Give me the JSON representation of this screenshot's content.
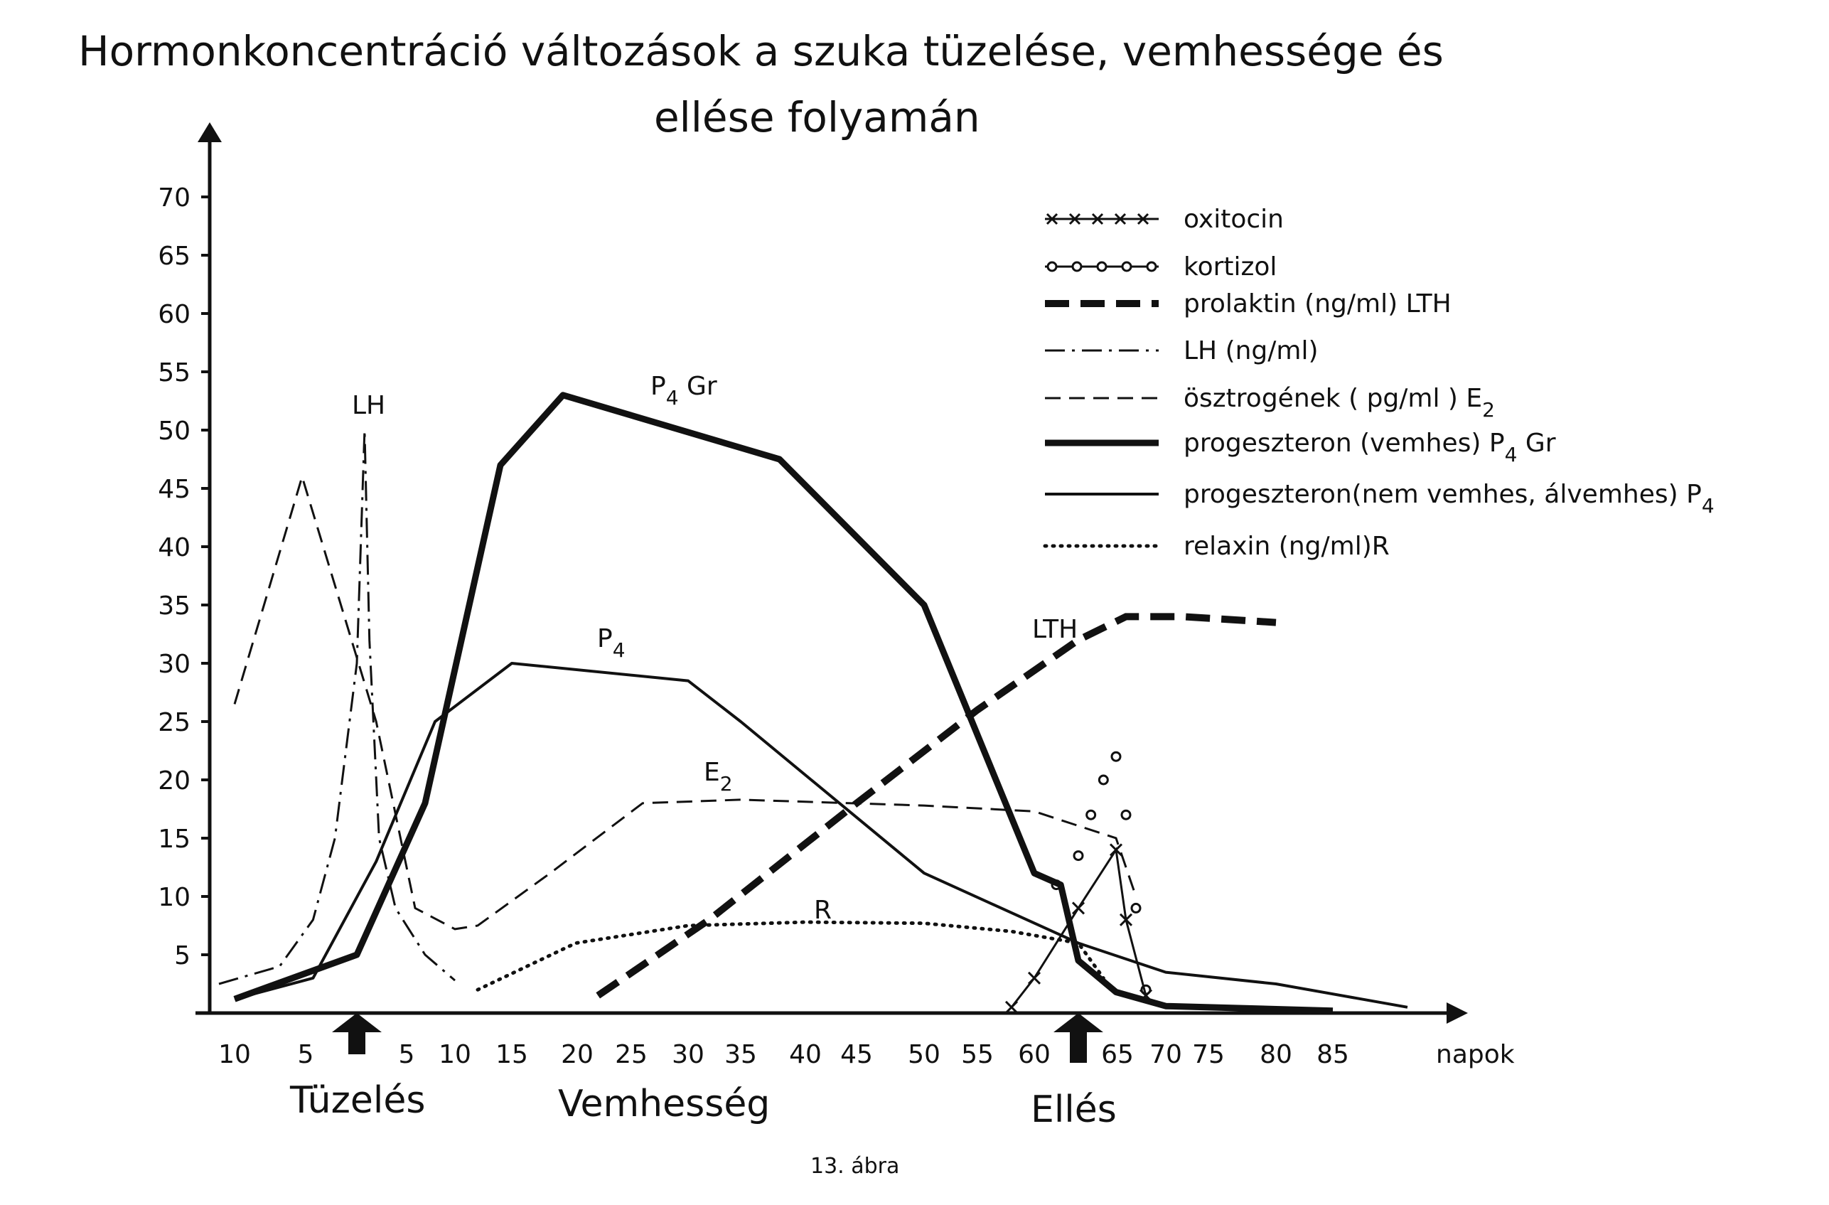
{
  "chart_data": {
    "type": "line",
    "title_line1": "Hormonkoncentráció  változások a  szuka  tüzelése,  vemhessége  és",
    "title_line2": "ellése  folyamán",
    "x_unit": "napok",
    "caption": "13. ábra",
    "y_ticks": [
      5,
      10,
      15,
      20,
      25,
      30,
      35,
      40,
      45,
      50,
      55,
      60,
      65,
      70
    ],
    "x_ticks": [
      "10",
      "5",
      "5",
      "10",
      "15",
      "20",
      "25",
      "30",
      "35",
      "40",
      "45",
      "50",
      "55",
      "60",
      "65",
      "70",
      "75",
      "80",
      "85"
    ],
    "phases": [
      "Tüzelés",
      "Vemhesség",
      "Ellés"
    ],
    "legend": [
      {
        "key": "oxitocin",
        "label": "oxitocin"
      },
      {
        "key": "kortizol",
        "label": "kortizol"
      },
      {
        "key": "prolaktin",
        "label": "prolaktin (ng/ml) LTH"
      },
      {
        "key": "lh",
        "label": "LH  (ng/ml)"
      },
      {
        "key": "osztrogen",
        "label": "ösztrogének ( pg/ml )  E"
      },
      {
        "key": "p4gr",
        "label": "progeszteron (vemhes)  P"
      },
      {
        "key": "p4",
        "label": "progeszteron(nem vemhes, álvemhes)  P"
      },
      {
        "key": "relaxin",
        "label": "relaxin (ng/ml)R"
      }
    ],
    "legend_subscripts": {
      "osztrogen": "2",
      "p4gr": "4",
      "p4gr_suffix": " Gr",
      "p4": "4"
    },
    "curve_labels": {
      "lh": "LH",
      "p4gr": "P",
      "p4gr_sub": "4",
      "p4gr_suffix": " Gr",
      "p4": "P",
      "p4_sub": "4",
      "e2": "E",
      "e2_sub": "2",
      "relaxin": "R",
      "lth": "LTH"
    },
    "series": [
      {
        "key": "osztrogen",
        "x": [
          -11,
          -5,
          2,
          6,
          10,
          12,
          18,
          26,
          35,
          50,
          60,
          65,
          67
        ],
        "y": [
          26.5,
          46,
          25,
          9,
          7.2,
          7.5,
          12,
          18,
          18.3,
          17.8,
          17.3,
          15,
          10
        ]
      },
      {
        "key": "lh",
        "x": [
          -13,
          -7,
          -4,
          -2,
          0,
          0.8,
          1.3,
          2.3,
          4,
          7,
          10
        ],
        "y": [
          2.5,
          4,
          8,
          15,
          30,
          50,
          32,
          15,
          9,
          5,
          2.8
        ]
      },
      {
        "key": "p4gr",
        "x": [
          -11,
          0,
          7,
          14,
          19,
          38,
          50,
          60,
          61.2,
          62,
          65,
          70,
          85
        ],
        "y": [
          1.2,
          5,
          18,
          47,
          53,
          47.5,
          35,
          12,
          11,
          4.5,
          1.8,
          0.6,
          0.2
        ]
      },
      {
        "key": "p4",
        "x": [
          -11,
          -4,
          2,
          8,
          15,
          30,
          35,
          50,
          62,
          70,
          80,
          95
        ],
        "y": [
          1.2,
          3,
          13,
          25,
          30,
          28.5,
          25,
          12,
          6,
          3.5,
          2.5,
          0.5
        ]
      },
      {
        "key": "prolaktin",
        "x": [
          22,
          32,
          45,
          55,
          62,
          66,
          72,
          80
        ],
        "y": [
          1.5,
          8,
          18,
          26,
          32,
          34,
          34,
          33.5
        ]
      },
      {
        "key": "relaxin",
        "x": [
          12,
          20,
          30,
          40,
          50,
          58,
          62,
          64
        ],
        "y": [
          2,
          6,
          7.5,
          7.8,
          7.7,
          7,
          6,
          3
        ]
      },
      {
        "key": "oxitocin",
        "x": [
          58,
          60,
          62,
          65,
          66,
          68
        ],
        "y": [
          0.5,
          3,
          9,
          14,
          8,
          1.5
        ]
      },
      {
        "key": "kortizol",
        "x": [
          61,
          62,
          63,
          64,
          65,
          66,
          67,
          68
        ],
        "y": [
          11,
          13.5,
          17,
          20,
          22,
          17,
          9,
          2
        ]
      }
    ]
  }
}
